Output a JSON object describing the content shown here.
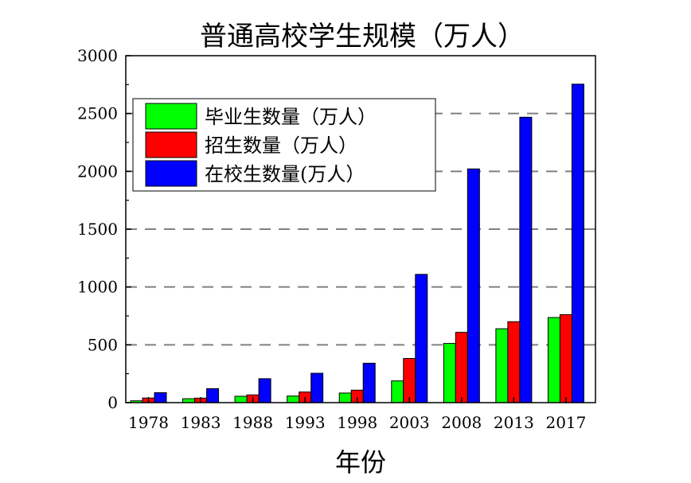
{
  "chart_data": {
    "type": "bar",
    "title": "普通高校学生规模（万人）",
    "xlabel": "年份",
    "ylabel": "",
    "categories": [
      "1978",
      "1983",
      "1988",
      "1993",
      "1998",
      "2003",
      "2008",
      "2013",
      "2017"
    ],
    "ylim": [
      0,
      3000
    ],
    "yticks": [
      0,
      500,
      1000,
      1500,
      2000,
      2500,
      3000
    ],
    "grid": "horizontal dashed",
    "legend_position": "top-left",
    "series": [
      {
        "name": "毕业生数量（万人）",
        "color": "#00ff00",
        "values": [
          16,
          34,
          55,
          57,
          83,
          188,
          512,
          639,
          736
        ]
      },
      {
        "name": "招生数量（万人）",
        "color": "#ff0000",
        "values": [
          40,
          39,
          67,
          92,
          108,
          382,
          608,
          700,
          761
        ]
      },
      {
        "name": "在校生数量(万人）",
        "color": "#0000ff",
        "values": [
          86,
          121,
          207,
          254,
          341,
          1109,
          2021,
          2468,
          2754
        ]
      }
    ]
  }
}
